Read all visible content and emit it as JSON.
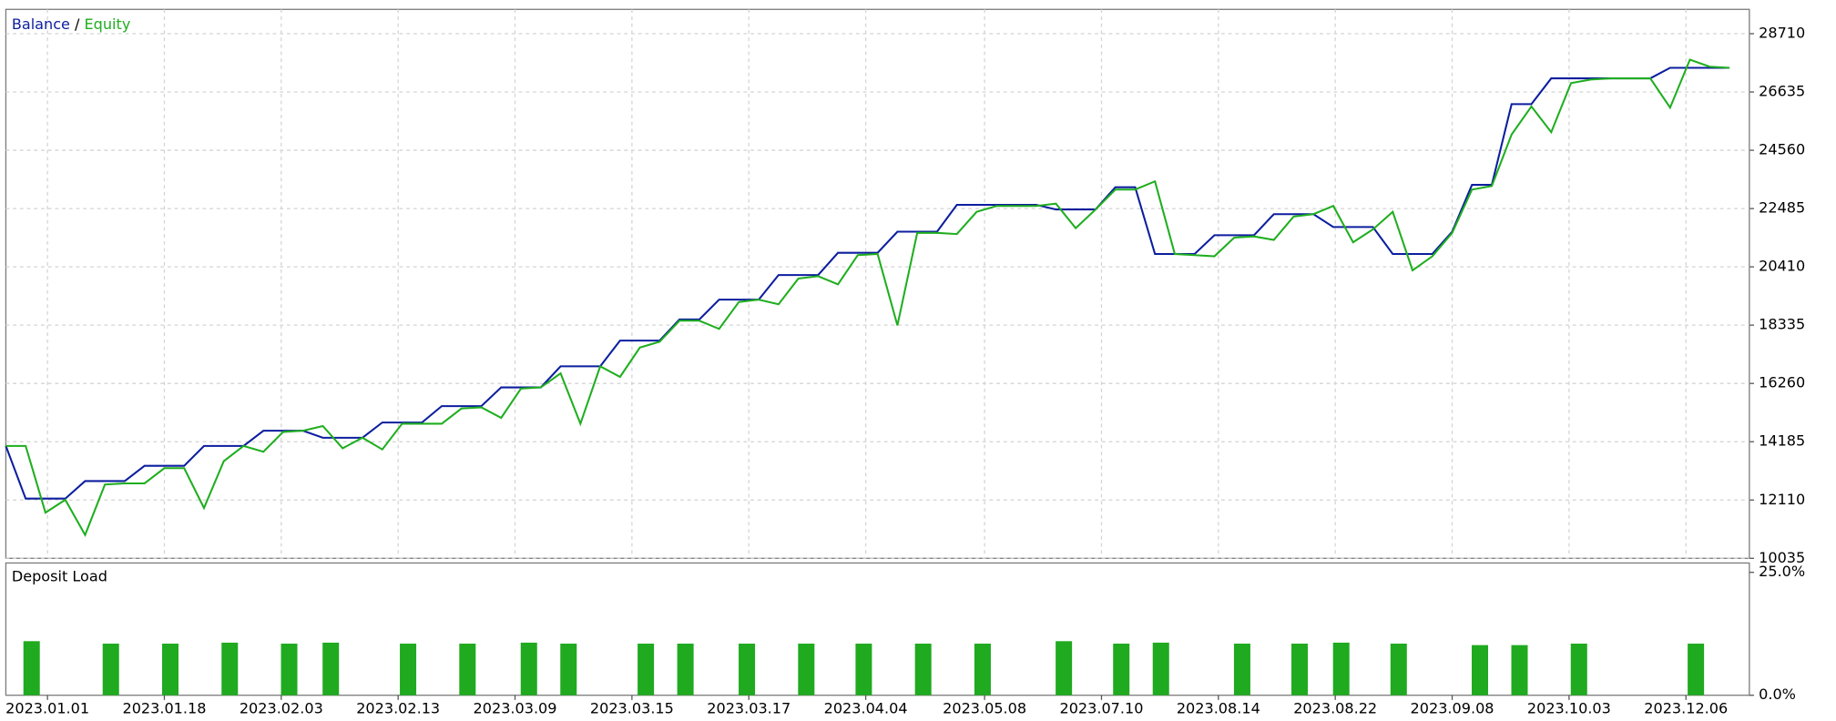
{
  "chart_data": [
    {
      "type": "line",
      "legend_separator": " / ",
      "xlim": [
        0,
        88
      ],
      "ylim": [
        10035,
        29576
      ],
      "yticks": [
        10035,
        12110,
        14185,
        16260,
        18335,
        20410,
        22485,
        24560,
        26635,
        28710
      ],
      "grid": true,
      "x": [
        0,
        1,
        2,
        3,
        4,
        5,
        6,
        7,
        8,
        9,
        10,
        11,
        12,
        13,
        14,
        15,
        16,
        17,
        18,
        19,
        20,
        21,
        22,
        23,
        24,
        25,
        26,
        27,
        28,
        29,
        30,
        31,
        32,
        33,
        34,
        35,
        36,
        37,
        38,
        39,
        40,
        41,
        42,
        43,
        44,
        45,
        46,
        47,
        48,
        49,
        50,
        51,
        52,
        53,
        54,
        55,
        56,
        57,
        58,
        59,
        60,
        61,
        62,
        63,
        64,
        65,
        66,
        67,
        68,
        69,
        70,
        71,
        72,
        73,
        74,
        75,
        76,
        77,
        78,
        79,
        80,
        81,
        82,
        83,
        84,
        85,
        86,
        87
      ],
      "series": [
        {
          "name": "Balance",
          "color": "#0c1e9e",
          "values": [
            14035,
            12160,
            12160,
            12160,
            12785,
            12785,
            12785,
            13327,
            13327,
            13327,
            14035,
            14035,
            14035,
            14577,
            14577,
            14577,
            14327,
            14327,
            14327,
            14869,
            14869,
            14869,
            15452,
            15452,
            15452,
            16119,
            16119,
            16119,
            16869,
            16869,
            16869,
            17786,
            17786,
            17786,
            18536,
            18536,
            19244,
            19244,
            19244,
            20119,
            20119,
            20119,
            20911,
            20911,
            20911,
            21661,
            21661,
            21661,
            22619,
            22619,
            22619,
            22619,
            22619,
            22453,
            22453,
            22453,
            23244,
            23244,
            20869,
            20869,
            20869,
            21536,
            21536,
            21536,
            22286,
            22286,
            22286,
            21828,
            21828,
            21828,
            20869,
            20869,
            20869,
            21661,
            23328,
            23328,
            26203,
            26203,
            27120,
            27120,
            27120,
            27120,
            27120,
            27120,
            27495,
            27495,
            27495,
            27495
          ]
        },
        {
          "name": "Equity",
          "color": "#1fae1f",
          "values": [
            14035,
            14035,
            11660,
            12119,
            10868,
            12660,
            12702,
            12702,
            13244,
            13244,
            11827,
            13494,
            14035,
            13827,
            14535,
            14577,
            14744,
            13952,
            14327,
            13910,
            14827,
            14827,
            14827,
            15369,
            15410,
            15035,
            16077,
            16119,
            16619,
            14827,
            16869,
            16494,
            17536,
            17744,
            18494,
            18494,
            18202,
            19161,
            19244,
            19077,
            19994,
            20077,
            19786,
            20828,
            20869,
            18327,
            21619,
            21619,
            21578,
            22369,
            22578,
            22578,
            22578,
            22661,
            21786,
            22453,
            23161,
            23161,
            23453,
            20869,
            20828,
            20786,
            21453,
            21494,
            21369,
            22203,
            22286,
            22578,
            21286,
            21744,
            22369,
            20286,
            20786,
            21619,
            23161,
            23286,
            25120,
            26120,
            25203,
            26953,
            27078,
            27120,
            27120,
            27120,
            26078,
            27786,
            27536,
            27495
          ]
        }
      ]
    },
    {
      "type": "bar",
      "title": "Deposit Load",
      "color": "#1faa1f",
      "xlim": [
        0,
        88
      ],
      "xticks": [
        {
          "value": 2.1,
          "label": "2023.01.01"
        },
        {
          "value": 8,
          "label": "2023.01.18"
        },
        {
          "value": 13.9,
          "label": "2023.02.03"
        },
        {
          "value": 19.8,
          "label": "2023.02.13"
        },
        {
          "value": 25.7,
          "label": "2023.03.09"
        },
        {
          "value": 31.6,
          "label": "2023.03.15"
        },
        {
          "value": 37.5,
          "label": "2023.03.17"
        },
        {
          "value": 43.4,
          "label": "2023.04.04"
        },
        {
          "value": 49.4,
          "label": "2023.05.08"
        },
        {
          "value": 55.3,
          "label": "2023.07.10"
        },
        {
          "value": 61.2,
          "label": "2023.08.14"
        },
        {
          "value": 67.1,
          "label": "2023.08.22"
        },
        {
          "value": 73,
          "label": "2023.09.08"
        },
        {
          "value": 78.9,
          "label": "2023.10.03"
        },
        {
          "value": 84.8,
          "label": "2023.12.06"
        }
      ],
      "ylim": [
        0,
        25
      ],
      "yticks": [
        {
          "value": 0,
          "label": "0.0%"
        },
        {
          "value": 25,
          "label": "25.0%"
        }
      ],
      "x": [
        1.3,
        5.3,
        8.3,
        11.3,
        14.3,
        16.4,
        20.3,
        23.3,
        26.4,
        28.4,
        32.3,
        34.3,
        37.4,
        40.4,
        43.3,
        46.3,
        49.3,
        53.4,
        56.3,
        58.3,
        62.4,
        65.3,
        67.4,
        70.3,
        74.4,
        76.4,
        79.4,
        85.3
      ],
      "values": [
        11,
        10.5,
        10.5,
        10.7,
        10.5,
        10.7,
        10.5,
        10.5,
        10.7,
        10.5,
        10.5,
        10.5,
        10.5,
        10.5,
        10.5,
        10.5,
        10.5,
        11,
        10.5,
        10.7,
        10.5,
        10.5,
        10.7,
        10.5,
        10.2,
        10.2,
        10.5,
        10.5
      ]
    }
  ]
}
